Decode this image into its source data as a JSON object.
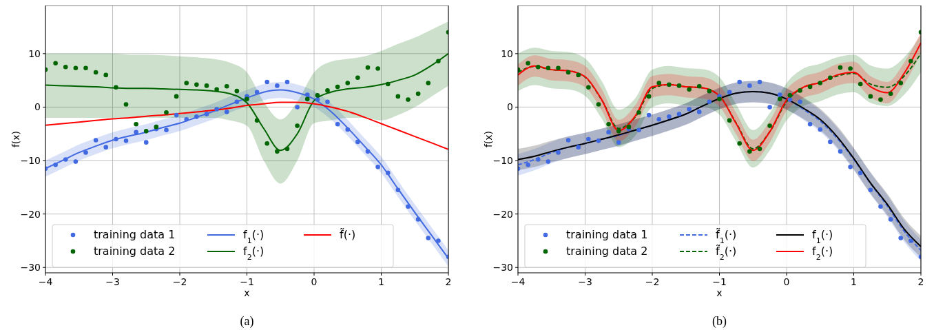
{
  "chart_data": [
    {
      "type": "line",
      "title": "(a)",
      "xlabel": "x",
      "ylabel": "f(x)",
      "xlim": [
        -4,
        2
      ],
      "ylim": [
        -31,
        19
      ],
      "xticks": [
        {
          "value": -4,
          "label": "−4"
        },
        {
          "value": -3,
          "label": "−3"
        },
        {
          "value": -2,
          "label": "−2"
        },
        {
          "value": -1,
          "label": "−1"
        },
        {
          "value": 0,
          "label": "0"
        },
        {
          "value": 1,
          "label": "1"
        },
        {
          "value": 2,
          "label": "2"
        }
      ],
      "yticks": [
        {
          "value": -30,
          "label": "−30"
        },
        {
          "value": -20,
          "label": "−20"
        },
        {
          "value": -10,
          "label": "−10"
        },
        {
          "value": 0,
          "label": "0"
        },
        {
          "value": 10,
          "label": "10"
        }
      ],
      "grid": true,
      "legend": "bottom left",
      "series": [
        {
          "type": "scatter",
          "name": "training data 1",
          "color": "#4169e1",
          "marker": "circle",
          "x": [
            -4,
            -3.85,
            -3.7,
            -3.55,
            -3.4,
            -3.25,
            -3.1,
            -2.95,
            -2.8,
            -2.65,
            -2.5,
            -2.35,
            -2.2,
            -2.05,
            -1.9,
            -1.75,
            -1.6,
            -1.45,
            -1.3,
            -1.15,
            -1,
            -0.85,
            -0.7,
            -0.55,
            -0.4,
            -0.25,
            -0.1,
            0.05,
            0.2,
            0.35,
            0.5,
            0.65,
            0.8,
            0.95,
            1.1,
            1.25,
            1.4,
            1.55,
            1.7,
            1.85,
            2
          ],
          "values": [
            -11.5,
            -10.8,
            -9.8,
            -10.2,
            -8.5,
            -6.2,
            -7.5,
            -6,
            -6.3,
            -4.7,
            -6.6,
            -4.1,
            -4.3,
            -1.5,
            -2.3,
            -1.8,
            -1.3,
            -0.4,
            -0.9,
            1,
            2,
            2.8,
            4.7,
            4,
            4.7,
            0,
            2.3,
            1.4,
            1,
            -3.2,
            -4.2,
            -6.5,
            -8.3,
            -11.2,
            -12.3,
            -15.5,
            -18.6,
            -21,
            -24.5,
            -25,
            -28
          ]
        },
        {
          "type": "scatter",
          "name": "training data 2",
          "color": "#006400",
          "marker": "circle",
          "x": [
            -4,
            -3.85,
            -3.7,
            -3.55,
            -3.4,
            -3.25,
            -3.1,
            -2.95,
            -2.8,
            -2.65,
            -2.5,
            -2.35,
            -2.2,
            -2.05,
            -1.9,
            -1.75,
            -1.6,
            -1.45,
            -1.3,
            -1.15,
            -1,
            -0.85,
            -0.7,
            -0.55,
            -0.4,
            -0.25,
            -0.1,
            0.05,
            0.2,
            0.35,
            0.5,
            0.65,
            0.8,
            0.95,
            1.1,
            1.25,
            1.4,
            1.55,
            1.7,
            1.85,
            2
          ],
          "values": [
            7,
            8.2,
            7.5,
            7.3,
            7.3,
            6.5,
            6,
            3.7,
            0.5,
            -3.2,
            -4.5,
            -3.7,
            -1,
            2,
            4.5,
            4.2,
            4,
            3.3,
            3.9,
            3,
            1.5,
            -2.5,
            -6.8,
            -8.3,
            -7.8,
            -3.5,
            1.5,
            2.2,
            3.1,
            3.8,
            4.5,
            5.5,
            7.4,
            7.2,
            4.3,
            2,
            1.4,
            2.5,
            4.5,
            8.6,
            14
          ]
        },
        {
          "name": "f$_{1}$(·)",
          "color": "#4169e1",
          "x": [
            -4,
            -3.75,
            -3.5,
            -3.25,
            -3,
            -2.75,
            -2.5,
            -2.25,
            -2,
            -1.75,
            -1.5,
            -1.25,
            -1,
            -0.75,
            -0.5,
            -0.25,
            0,
            0.25,
            0.5,
            0.75,
            1,
            1.25,
            1.5,
            1.75,
            2
          ],
          "values": [
            -11.5,
            -10,
            -8.5,
            -7.3,
            -6.2,
            -5.4,
            -4.7,
            -3.8,
            -3,
            -1.9,
            -0.8,
            0.5,
            1.7,
            2.8,
            3.2,
            2.7,
            1.5,
            -0.8,
            -3.9,
            -7.3,
            -10.8,
            -15.3,
            -19.7,
            -24,
            -28.3
          ],
          "lower": [
            -13,
            -11.5,
            -10,
            -8.8,
            -7.7,
            -6.9,
            -6.2,
            -5.3,
            -4.5,
            -3.4,
            -2.3,
            -1,
            0.2,
            1.3,
            1.7,
            1.2,
            0,
            -2.3,
            -5.4,
            -8.8,
            -12.3,
            -16.8,
            -21.2,
            -25.5,
            -29.8
          ],
          "upper": [
            -10,
            -8.5,
            -7,
            -5.8,
            -4.7,
            -3.9,
            -3.2,
            -2.3,
            -1.5,
            -0.4,
            0.7,
            2,
            3.2,
            4.3,
            4.7,
            4.2,
            3,
            0.7,
            -2.4,
            -5.8,
            -9.3,
            -13.8,
            -18.2,
            -22.5,
            -26.8
          ]
        },
        {
          "name": "f$_{2}$(·)",
          "color": "#006400",
          "x": [
            -4,
            -3.75,
            -3.5,
            -3.25,
            -3,
            -2.75,
            -2.5,
            -2.25,
            -2,
            -1.75,
            -1.5,
            -1.25,
            -1,
            -0.75,
            -0.5,
            -0.25,
            0,
            0.25,
            0.5,
            0.75,
            1,
            1.25,
            1.5,
            1.75,
            2
          ],
          "values": [
            4.1,
            4,
            3.9,
            3.8,
            3.6,
            3.5,
            3.5,
            3.4,
            3.3,
            3.2,
            3,
            2.5,
            0.8,
            -4,
            -8.1,
            -5,
            1.2,
            2.8,
            3.4,
            3.7,
            4.2,
            5,
            6,
            7.8,
            10
          ],
          "lower": [
            -2,
            -2,
            -2,
            -2,
            -2,
            -2,
            -2,
            -2,
            -2,
            -2,
            -2,
            -2.5,
            -3.5,
            -10,
            -14.3,
            -10,
            -3,
            -2.5,
            -2,
            -2,
            -2.5,
            -1.5,
            0,
            2,
            4
          ],
          "upper": [
            10,
            10,
            10,
            10,
            10,
            9.8,
            9.8,
            9.7,
            9.5,
            9.3,
            9,
            8.3,
            6.5,
            1,
            -2.3,
            1,
            6.5,
            8.5,
            9,
            9.5,
            10.5,
            11.8,
            13,
            14.5,
            16
          ]
        },
        {
          "name": "f̃(·)",
          "color": "#ff0000",
          "x": [
            -4,
            -3.75,
            -3.5,
            -3.25,
            -3,
            -2.75,
            -2.5,
            -2.25,
            -2,
            -1.75,
            -1.5,
            -1.25,
            -1,
            -0.75,
            -0.5,
            -0.25,
            0,
            0.25,
            0.5,
            0.75,
            1,
            1.25,
            1.5,
            1.75,
            2
          ],
          "values": [
            -3.4,
            -3.1,
            -2.8,
            -2.5,
            -2.2,
            -2,
            -1.7,
            -1.5,
            -1.2,
            -0.9,
            -0.6,
            -0.2,
            0.3,
            0.6,
            0.9,
            0.9,
            0.6,
            0,
            -0.8,
            -1.9,
            -3.1,
            -4.3,
            -5.5,
            -6.7,
            -7.9
          ]
        }
      ]
    },
    {
      "type": "line",
      "title": "(b)",
      "xlabel": "x",
      "ylabel": "f(x)",
      "xlim": [
        -4,
        2
      ],
      "ylim": [
        -31,
        19
      ],
      "xticks": [
        {
          "value": -4,
          "label": "−4"
        },
        {
          "value": -3,
          "label": "−3"
        },
        {
          "value": -2,
          "label": "−2"
        },
        {
          "value": -1,
          "label": "−1"
        },
        {
          "value": 0,
          "label": "0"
        },
        {
          "value": 1,
          "label": "1"
        },
        {
          "value": 2,
          "label": "2"
        }
      ],
      "yticks": [
        {
          "value": -30,
          "label": "−30"
        },
        {
          "value": -20,
          "label": "−20"
        },
        {
          "value": -10,
          "label": "−10"
        },
        {
          "value": 0,
          "label": "0"
        },
        {
          "value": 10,
          "label": "10"
        }
      ],
      "grid": true,
      "legend": "bottom left",
      "series": [
        {
          "type": "scatter",
          "name": "training data 1",
          "color": "#4169e1",
          "marker": "circle",
          "x": [
            -4,
            -3.85,
            -3.7,
            -3.55,
            -3.4,
            -3.25,
            -3.1,
            -2.95,
            -2.8,
            -2.65,
            -2.5,
            -2.35,
            -2.2,
            -2.05,
            -1.9,
            -1.75,
            -1.6,
            -1.45,
            -1.3,
            -1.15,
            -1,
            -0.85,
            -0.7,
            -0.55,
            -0.4,
            -0.25,
            -0.1,
            0.05,
            0.2,
            0.35,
            0.5,
            0.65,
            0.8,
            0.95,
            1.1,
            1.25,
            1.4,
            1.55,
            1.7,
            1.85,
            2
          ],
          "values": [
            -11.5,
            -10.8,
            -9.8,
            -10.2,
            -8.5,
            -6.2,
            -7.5,
            -6,
            -6.3,
            -4.7,
            -6.6,
            -4.1,
            -4.3,
            -1.5,
            -2.3,
            -1.8,
            -1.3,
            -0.4,
            -0.9,
            1,
            2,
            2.8,
            4.7,
            4,
            4.7,
            0,
            2.3,
            1.4,
            1,
            -3.2,
            -4.2,
            -6.5,
            -8.3,
            -11.2,
            -12.3,
            -15.5,
            -18.6,
            -21,
            -24.5,
            -25,
            -28
          ]
        },
        {
          "type": "scatter",
          "name": "training data 2",
          "color": "#006400",
          "marker": "circle",
          "x": [
            -4,
            -3.85,
            -3.7,
            -3.55,
            -3.4,
            -3.25,
            -3.1,
            -2.95,
            -2.8,
            -2.65,
            -2.5,
            -2.35,
            -2.2,
            -2.05,
            -1.9,
            -1.75,
            -1.6,
            -1.45,
            -1.3,
            -1.15,
            -1,
            -0.85,
            -0.7,
            -0.55,
            -0.4,
            -0.25,
            -0.1,
            0.05,
            0.2,
            0.35,
            0.5,
            0.65,
            0.8,
            0.95,
            1.1,
            1.25,
            1.4,
            1.55,
            1.7,
            1.85,
            2
          ],
          "values": [
            7,
            8.2,
            7.5,
            7.3,
            7.3,
            6.5,
            6,
            3.7,
            0.5,
            -3.2,
            -4.5,
            -3.7,
            -1,
            2,
            4.5,
            4.2,
            4,
            3.3,
            3.9,
            3,
            1.5,
            -2.5,
            -6.8,
            -8.3,
            -7.8,
            -3.5,
            1.5,
            2.2,
            3.1,
            3.8,
            4.5,
            5.5,
            7.4,
            7.2,
            4.3,
            2,
            1.4,
            2.5,
            4.5,
            8.6,
            14
          ]
        },
        {
          "name": "f̃$_{1}$(·)",
          "color": "#4169e1",
          "line_style": "dashed",
          "x": [
            -4,
            -3.75,
            -3.5,
            -3.25,
            -3,
            -2.75,
            -2.5,
            -2.25,
            -2,
            -1.75,
            -1.5,
            -1.25,
            -1,
            -0.75,
            -0.5,
            -0.25,
            0,
            0.25,
            0.5,
            0.75,
            1,
            1.25,
            1.5,
            1.75,
            2
          ],
          "values": [
            -10.8,
            -9.8,
            -8.5,
            -7.5,
            -6.8,
            -6,
            -5.3,
            -4.3,
            -3.4,
            -2.4,
            -1.3,
            0.2,
            1.6,
            2.6,
            2.9,
            2.6,
            1.5,
            -0.4,
            -2.6,
            -5.8,
            -9.8,
            -14.3,
            -18.5,
            -23.2,
            -26.8
          ],
          "lower": [
            -12.8,
            -11.8,
            -10.5,
            -9.5,
            -8.8,
            -8,
            -7.3,
            -6.3,
            -5.4,
            -4.4,
            -3.3,
            -1.8,
            -0.4,
            0.6,
            0.9,
            0.6,
            -0.5,
            -2.4,
            -4.6,
            -7.8,
            -11.8,
            -16.3,
            -20.5,
            -25.2,
            -28.8
          ],
          "upper": [
            -8.8,
            -7.8,
            -6.5,
            -5.5,
            -4.8,
            -4,
            -3.3,
            -2.3,
            -1.4,
            -0.4,
            0.7,
            2.2,
            3.6,
            4.6,
            4.9,
            4.6,
            3.5,
            1.6,
            -0.6,
            -3.8,
            -7.8,
            -12.3,
            -16.5,
            -21.2,
            -24.8
          ]
        },
        {
          "name": "f̃$_{2}$(·)",
          "color": "#006400",
          "line_style": "dashed",
          "x": [
            -4,
            -3.75,
            -3.5,
            -3.25,
            -3,
            -2.75,
            -2.5,
            -2.25,
            -2,
            -1.75,
            -1.5,
            -1.25,
            -1,
            -0.75,
            -0.5,
            -0.25,
            0,
            0.25,
            0.5,
            0.75,
            1,
            1.25,
            1.5,
            1.75,
            2
          ],
          "values": [
            6.5,
            7.6,
            7,
            6.8,
            5.6,
            1.3,
            -4,
            -1.8,
            3.5,
            4.2,
            3.8,
            3.6,
            2.1,
            -3,
            -7.8,
            -4.6,
            1,
            3.7,
            4.6,
            5.8,
            6.3,
            4.3,
            3.7,
            5.8,
            10
          ],
          "lower": [
            3,
            4.1,
            3.5,
            3.3,
            2.1,
            -2.2,
            -7.5,
            -5.3,
            0,
            0.7,
            0.3,
            0.1,
            -1.4,
            -6.5,
            -11.3,
            -8.1,
            -2.5,
            0.2,
            1.1,
            2.3,
            2.8,
            0.8,
            0.2,
            2.3,
            6.5
          ],
          "upper": [
            10,
            11.1,
            10.5,
            10.3,
            9.1,
            4.8,
            -0.5,
            1.7,
            7,
            7.7,
            7.3,
            7.1,
            5.6,
            0.5,
            -4.3,
            -1.1,
            4.5,
            7.2,
            8.1,
            9.3,
            9.8,
            7.8,
            7.2,
            9.3,
            13.5
          ]
        },
        {
          "name": "f$_{1}$(·)",
          "color": "#000000",
          "x": [
            -4,
            -3.75,
            -3.5,
            -3.25,
            -3,
            -2.75,
            -2.5,
            -2.25,
            -2,
            -1.75,
            -1.5,
            -1.25,
            -1,
            -0.75,
            -0.5,
            -0.25,
            0,
            0.25,
            0.5,
            0.75,
            1,
            1.25,
            1.5,
            1.75,
            2
          ],
          "values": [
            -9.8,
            -9.2,
            -8.3,
            -7.5,
            -6.8,
            -6,
            -5.2,
            -4.3,
            -3.4,
            -2.4,
            -1.3,
            0.2,
            1.6,
            2.6,
            2.9,
            2.6,
            1.5,
            -0.2,
            -2.3,
            -5.5,
            -9.6,
            -14.2,
            -18.2,
            -22.8,
            -26.1
          ],
          "lower": [
            -11.8,
            -11.2,
            -10.3,
            -9.5,
            -8.8,
            -8,
            -7.2,
            -6.3,
            -5.4,
            -4.4,
            -3.3,
            -1.8,
            -0.4,
            0.6,
            0.9,
            0.6,
            -0.5,
            -2.2,
            -4.3,
            -7.5,
            -11.6,
            -16.2,
            -20.2,
            -24.8,
            -28.1
          ],
          "upper": [
            -7.8,
            -7.2,
            -6.3,
            -5.5,
            -4.8,
            -4,
            -3.2,
            -2.3,
            -1.4,
            -0.4,
            0.7,
            2.2,
            3.6,
            4.6,
            4.9,
            4.6,
            3.5,
            1.8,
            -0.3,
            -3.5,
            -7.6,
            -12.2,
            -16.2,
            -20.8,
            -24.1
          ]
        },
        {
          "name": "f$_{2}$(·)",
          "color": "#ff0000",
          "x": [
            -4,
            -3.75,
            -3.5,
            -3.25,
            -3,
            -2.75,
            -2.5,
            -2.25,
            -2,
            -1.75,
            -1.5,
            -1.25,
            -1,
            -0.75,
            -0.5,
            -0.25,
            0,
            0.25,
            0.5,
            0.75,
            1,
            1.25,
            1.5,
            1.75,
            2
          ],
          "values": [
            6,
            7.7,
            7,
            6.8,
            5.7,
            1.3,
            -4.4,
            -1.6,
            3.8,
            4.2,
            3.8,
            3.6,
            2.1,
            -3.1,
            -8.1,
            -4.6,
            1.3,
            3.7,
            4.6,
            6,
            6.5,
            3.8,
            2.7,
            6.3,
            12
          ],
          "lower": [
            4,
            5.7,
            5,
            4.8,
            3.7,
            -0.7,
            -6.4,
            -3.6,
            1.8,
            2.2,
            1.8,
            1.6,
            0.1,
            -5.1,
            -10.1,
            -6.6,
            -0.7,
            1.7,
            2.6,
            4,
            4.5,
            1.8,
            0.7,
            4.3,
            10
          ],
          "upper": [
            8,
            9.7,
            9,
            8.8,
            7.7,
            3.3,
            -2.4,
            0.4,
            5.8,
            6.2,
            5.8,
            5.6,
            4.1,
            -1.1,
            -6.1,
            -2.6,
            3.3,
            5.7,
            6.6,
            8,
            8.5,
            5.8,
            4.7,
            8.3,
            14
          ]
        }
      ]
    }
  ]
}
